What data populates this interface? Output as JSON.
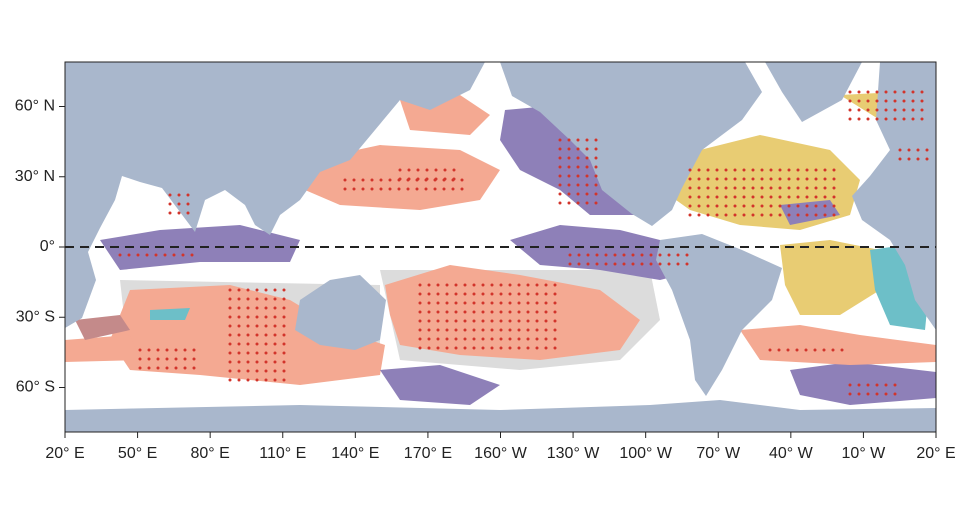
{
  "map": {
    "lonlim": [
      20,
      380
    ],
    "latlim": [
      -79,
      79
    ],
    "lon_ticks": [
      {
        "value": 20,
        "label": "20° E"
      },
      {
        "value": 50,
        "label": "50° E"
      },
      {
        "value": 80,
        "label": "80° E"
      },
      {
        "value": 110,
        "label": "110° E"
      },
      {
        "value": 140,
        "label": "140° E"
      },
      {
        "value": 170,
        "label": "170° E"
      },
      {
        "value": 200,
        "label": "160° W"
      },
      {
        "value": 230,
        "label": "130° W"
      },
      {
        "value": 260,
        "label": "100° W"
      },
      {
        "value": 290,
        "label": "70° W"
      },
      {
        "value": 320,
        "label": "40° W"
      },
      {
        "value": 350,
        "label": "10° W"
      },
      {
        "value": 380,
        "label": "20° E"
      }
    ],
    "lat_ticks": [
      {
        "value": 60,
        "label": "60° N"
      },
      {
        "value": 30,
        "label": "30° N"
      },
      {
        "value": 0,
        "label": "0°"
      },
      {
        "value": -30,
        "label": "30° S"
      },
      {
        "value": -60,
        "label": "60° S"
      }
    ]
  }
}
